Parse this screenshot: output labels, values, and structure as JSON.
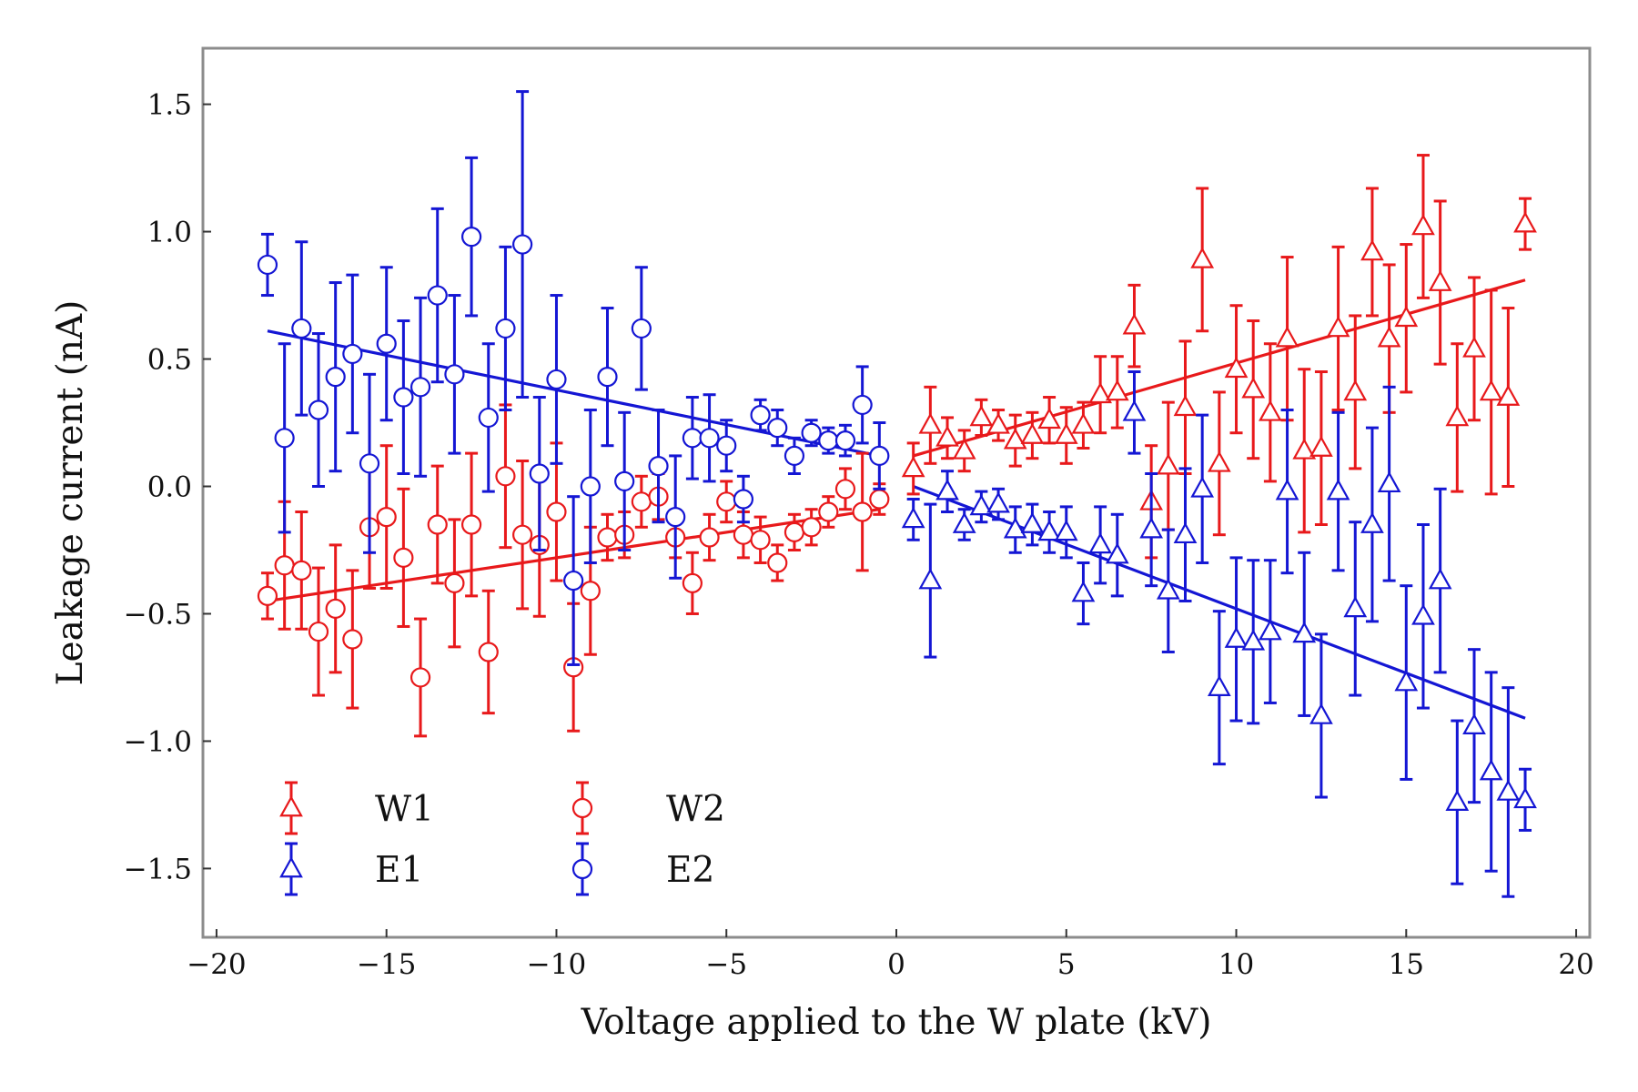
{
  "chart_data": {
    "type": "scatter",
    "title": "",
    "xlabel": "Voltage applied to the W plate (kV)",
    "ylabel": "Leakage current (nA)",
    "xlim": [
      -20.4,
      20.4
    ],
    "ylim": [
      -1.77,
      1.72
    ],
    "xticks": [
      -20,
      -15,
      -10,
      -5,
      0,
      5,
      10,
      15,
      20
    ],
    "xtick_labels": [
      "−20",
      "−15",
      "−10",
      "−5",
      "0",
      "5",
      "10",
      "15",
      "20"
    ],
    "yticks": [
      -1.5,
      -1.0,
      -0.5,
      0.0,
      0.5,
      1.0,
      1.5
    ],
    "ytick_labels": [
      "−1.5",
      "−1.0",
      "−0.5",
      "0.0",
      "0.5",
      "1.0",
      "1.5"
    ],
    "grid": false,
    "legend": {
      "position": "lower-left",
      "columns": 2
    },
    "colors": {
      "red": "#e8191b",
      "blue": "#1416d4",
      "frame": "#8c8c8c"
    },
    "series": [
      {
        "name": "W1",
        "color": "#e8191b",
        "marker": "triangle",
        "x": [
          0.5,
          1,
          1.5,
          2,
          2.5,
          3,
          3.5,
          4,
          4.5,
          5,
          5.5,
          6,
          6.5,
          7,
          7.5,
          8,
          8.5,
          9,
          9.5,
          10,
          10.5,
          11,
          11.5,
          12,
          12.5,
          13,
          13.5,
          14,
          14.5,
          15,
          15.5,
          16,
          16.5,
          17,
          17.5,
          18,
          18.5
        ],
        "y": [
          0.07,
          0.24,
          0.19,
          0.14,
          0.27,
          0.24,
          0.18,
          0.2,
          0.26,
          0.2,
          0.24,
          0.36,
          0.37,
          0.63,
          -0.06,
          0.08,
          0.31,
          0.89,
          0.09,
          0.46,
          0.38,
          0.29,
          0.58,
          0.14,
          0.15,
          0.62,
          0.37,
          0.92,
          0.58,
          0.66,
          1.02,
          0.8,
          0.27,
          0.54,
          0.37,
          0.35,
          1.03
        ],
        "yerr": [
          0.1,
          0.15,
          0.08,
          0.08,
          0.07,
          0.06,
          0.1,
          0.09,
          0.09,
          0.11,
          0.09,
          0.15,
          0.14,
          0.16,
          0.22,
          0.25,
          0.26,
          0.28,
          0.28,
          0.25,
          0.27,
          0.27,
          0.32,
          0.32,
          0.3,
          0.32,
          0.3,
          0.25,
          0.29,
          0.29,
          0.28,
          0.32,
          0.29,
          0.28,
          0.4,
          0.35,
          0.1
        ]
      },
      {
        "name": "E1",
        "color": "#1416d4",
        "marker": "triangle",
        "x": [
          0.5,
          1,
          1.5,
          2,
          2.5,
          3,
          3.5,
          4,
          4.5,
          5,
          5.5,
          6,
          6.5,
          7,
          7.5,
          8,
          8.5,
          9,
          9.5,
          10,
          10.5,
          11,
          11.5,
          12,
          12.5,
          13,
          13.5,
          14,
          14.5,
          15,
          15.5,
          16,
          16.5,
          17,
          17.5,
          18,
          18.5
        ],
        "y": [
          -0.13,
          -0.37,
          -0.02,
          -0.15,
          -0.08,
          -0.07,
          -0.17,
          -0.15,
          -0.18,
          -0.18,
          -0.42,
          -0.23,
          -0.27,
          0.29,
          -0.17,
          -0.41,
          -0.19,
          -0.01,
          -0.79,
          -0.6,
          -0.61,
          -0.57,
          -0.02,
          -0.58,
          -0.9,
          -0.02,
          -0.48,
          -0.15,
          0.01,
          -0.77,
          -0.51,
          -0.37,
          -1.24,
          -0.94,
          -1.12,
          -1.2,
          -1.23
        ],
        "yerr": [
          0.08,
          0.3,
          0.08,
          0.06,
          0.06,
          0.06,
          0.09,
          0.08,
          0.08,
          0.1,
          0.12,
          0.15,
          0.16,
          0.16,
          0.22,
          0.24,
          0.26,
          0.29,
          0.3,
          0.32,
          0.32,
          0.28,
          0.32,
          0.32,
          0.32,
          0.31,
          0.34,
          0.38,
          0.38,
          0.38,
          0.36,
          0.36,
          0.32,
          0.3,
          0.39,
          0.41,
          0.12
        ]
      },
      {
        "name": "W2",
        "color": "#e8191b",
        "marker": "circle",
        "x": [
          -18.5,
          -18,
          -17.5,
          -17,
          -16.5,
          -16,
          -15.5,
          -15,
          -14.5,
          -14,
          -13.5,
          -13,
          -12.5,
          -12,
          -11.5,
          -11,
          -10.5,
          -10,
          -9.5,
          -9,
          -8.5,
          -8,
          -7.5,
          -7,
          -6.5,
          -6,
          -5.5,
          -5,
          -4.5,
          -4,
          -3.5,
          -3,
          -2.5,
          -2,
          -1.5,
          -1,
          -0.5
        ],
        "y": [
          -0.43,
          -0.31,
          -0.33,
          -0.57,
          -0.48,
          -0.6,
          -0.16,
          -0.12,
          -0.28,
          -0.75,
          -0.15,
          -0.38,
          -0.15,
          -0.65,
          0.04,
          -0.19,
          -0.23,
          -0.1,
          -0.71,
          -0.41,
          -0.2,
          -0.19,
          -0.06,
          -0.04,
          -0.2,
          -0.38,
          -0.2,
          -0.06,
          -0.19,
          -0.21,
          -0.3,
          -0.18,
          -0.16,
          -0.1,
          -0.01,
          -0.1,
          -0.05
        ],
        "yerr": [
          0.09,
          0.25,
          0.23,
          0.25,
          0.25,
          0.27,
          0.24,
          0.28,
          0.27,
          0.23,
          0.23,
          0.25,
          0.28,
          0.24,
          0.28,
          0.29,
          0.28,
          0.27,
          0.25,
          0.25,
          0.09,
          0.09,
          0.1,
          0.09,
          0.08,
          0.12,
          0.09,
          0.08,
          0.09,
          0.09,
          0.07,
          0.07,
          0.07,
          0.06,
          0.08,
          0.23,
          0.06
        ]
      },
      {
        "name": "E2",
        "color": "#1416d4",
        "marker": "circle",
        "x": [
          -18.5,
          -18,
          -17.5,
          -17,
          -16.5,
          -16,
          -15.5,
          -15,
          -14.5,
          -14,
          -13.5,
          -13,
          -12.5,
          -12,
          -11.5,
          -11,
          -10.5,
          -10,
          -9.5,
          -9,
          -8.5,
          -8,
          -7.5,
          -7,
          -6.5,
          -6,
          -5.5,
          -5,
          -4.5,
          -4,
          -3.5,
          -3,
          -2.5,
          -2,
          -1.5,
          -1,
          -0.5
        ],
        "y": [
          0.87,
          0.19,
          0.62,
          0.3,
          0.43,
          0.52,
          0.09,
          0.56,
          0.35,
          0.39,
          0.75,
          0.44,
          0.98,
          0.27,
          0.62,
          0.95,
          0.05,
          0.42,
          -0.37,
          0.0,
          0.43,
          0.02,
          0.62,
          0.08,
          -0.12,
          0.19,
          0.19,
          0.16,
          -0.05,
          0.28,
          0.23,
          0.12,
          0.21,
          0.18,
          0.18,
          0.32,
          0.12
        ],
        "yerr": [
          0.12,
          0.37,
          0.34,
          0.3,
          0.37,
          0.31,
          0.35,
          0.3,
          0.3,
          0.35,
          0.34,
          0.31,
          0.31,
          0.29,
          0.32,
          0.6,
          0.3,
          0.33,
          0.33,
          0.3,
          0.27,
          0.27,
          0.24,
          0.22,
          0.24,
          0.16,
          0.17,
          0.1,
          0.09,
          0.06,
          0.07,
          0.07,
          0.05,
          0.05,
          0.06,
          0.15,
          0.13
        ]
      }
    ],
    "fits": [
      {
        "color": "#e8191b",
        "x": [
          0.5,
          18.5
        ],
        "y": [
          0.12,
          0.81
        ]
      },
      {
        "color": "#1416d4",
        "x": [
          0.5,
          18.5
        ],
        "y": [
          0.0,
          -0.91
        ]
      },
      {
        "color": "#e8191b",
        "x": [
          -18.5,
          -0.5
        ],
        "y": [
          -0.45,
          -0.09
        ]
      },
      {
        "color": "#1416d4",
        "x": [
          -18.5,
          -0.5
        ],
        "y": [
          0.61,
          0.12
        ]
      }
    ]
  }
}
